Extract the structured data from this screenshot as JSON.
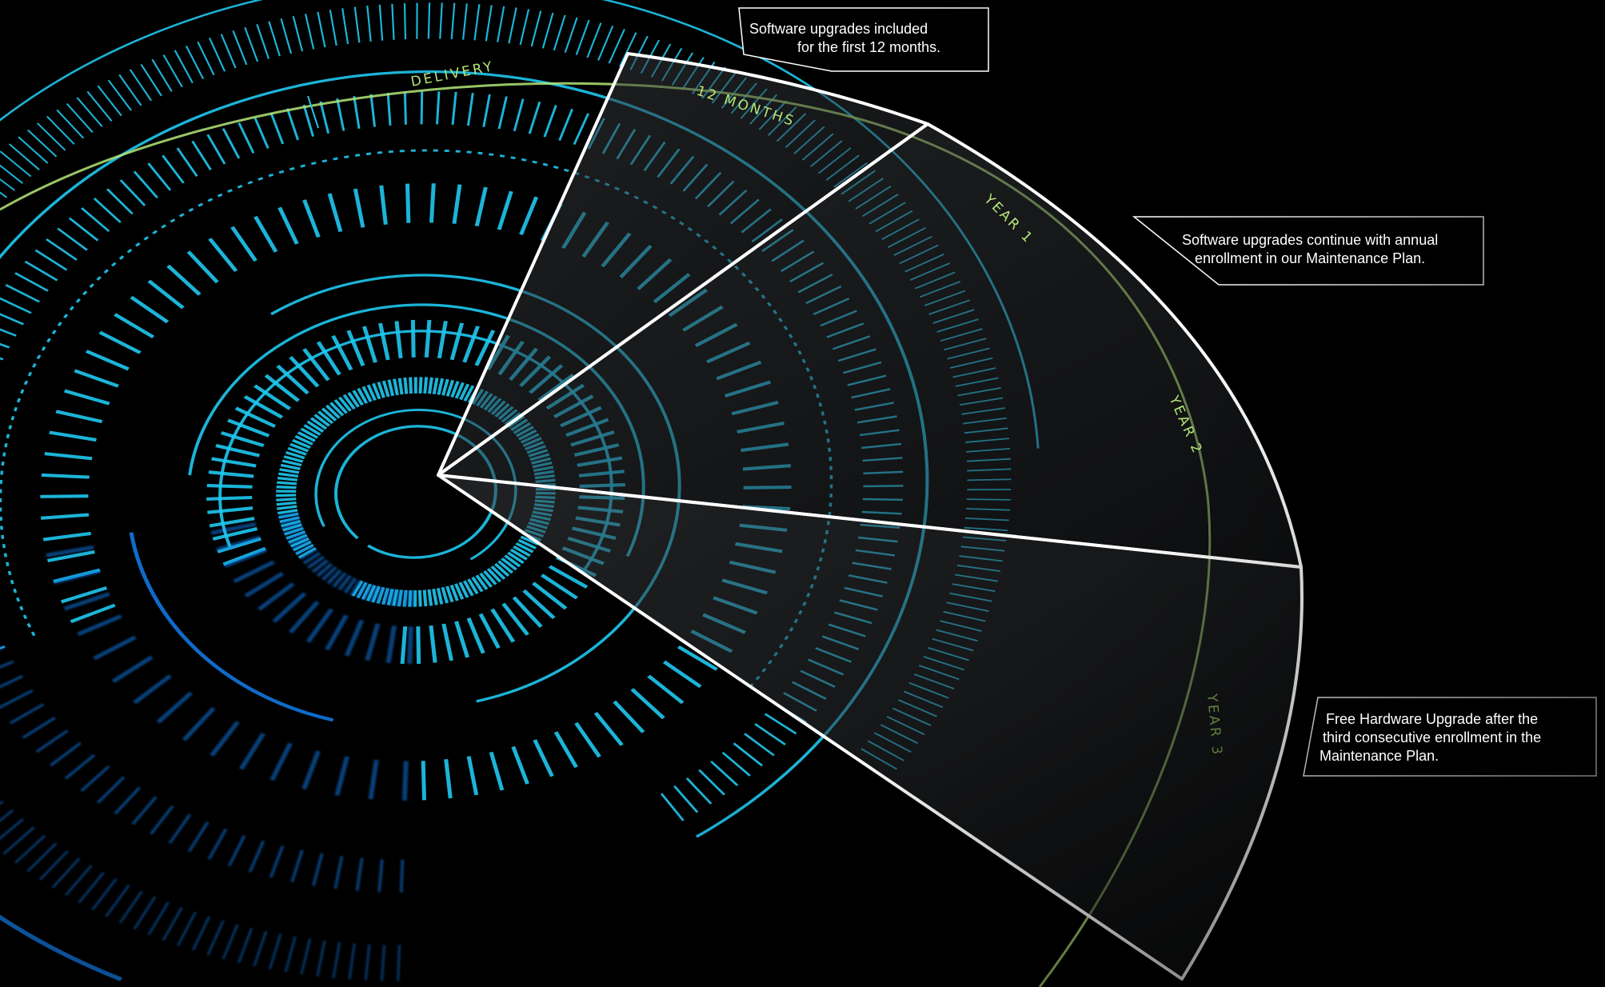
{
  "labels": {
    "delivery": "DELIVERY",
    "months": "12 MONTHS",
    "year1": "YEAR 1",
    "year2": "YEAR 2",
    "year3": "YEAR 3"
  },
  "callouts": {
    "software_first_year": {
      "line1": "Software upgrades included",
      "line2": "for the first 12 months."
    },
    "maintenance": {
      "line1": "Software upgrades continue with annual",
      "line2": "enrollment in our Maintenance Plan."
    },
    "hardware": {
      "line1": "Free Hardware Upgrade after the",
      "line2": "third consecutive enrollment in the",
      "line3": "Maintenance Plan."
    }
  },
  "colors": {
    "background": "#000000",
    "cyan": "#1fc8f0",
    "blue": "#1177e0",
    "green": "#b4e678",
    "panel_stroke": "#ffffff",
    "panel_fill": "#2a2d30"
  }
}
